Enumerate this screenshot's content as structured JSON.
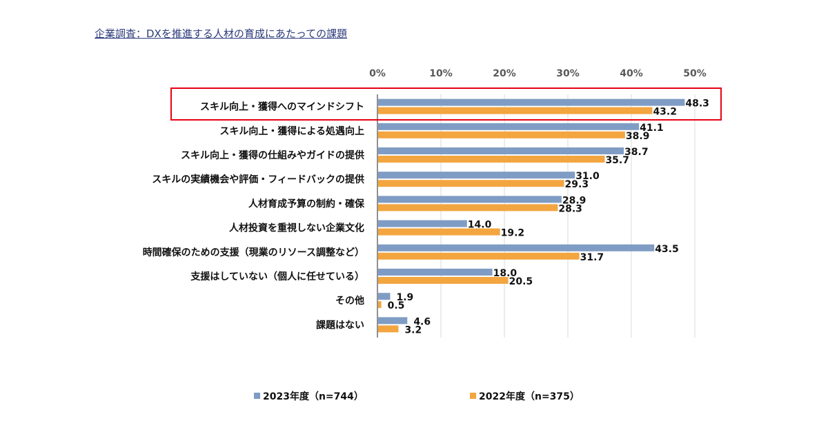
{
  "title": "企業調査：DXを推進する人材の育成にあたっての課題",
  "chart_data": {
    "type": "bar",
    "orientation": "horizontal",
    "title": "企業調査：DXを推進する人材の育成にあたっての課題",
    "xlim": [
      0,
      50
    ],
    "xticks": [
      "0%",
      "10%",
      "20%",
      "30%",
      "40%",
      "50%"
    ],
    "xtick_values": [
      0,
      10,
      20,
      30,
      40,
      50
    ],
    "grid": true,
    "legend_position": "bottom",
    "categories": [
      "スキル向上・獲得へのマインドシフト",
      "スキル向上・獲得による処遇向上",
      "スキル向上・獲得の仕組みやガイドの提供",
      "スキルの実績機会や評価・フィードバックの提供",
      "人材育成予算の制約・確保",
      "人材投資を重視しない企業文化",
      "時間確保のための支援（現業のリソース調整など）",
      "支援はしていない（個人に任せている）",
      "その他",
      "課題はない"
    ],
    "series": [
      {
        "name": "2023年度（n=744）",
        "color": "#7f9cc4",
        "values": [
          48.3,
          41.1,
          38.7,
          31.0,
          28.9,
          14.0,
          43.5,
          18.0,
          1.9,
          4.6
        ]
      },
      {
        "name": "2022年度（n=375）",
        "color": "#f3a540",
        "values": [
          43.2,
          38.9,
          35.7,
          29.3,
          28.3,
          19.2,
          31.7,
          20.5,
          0.5,
          3.2
        ]
      }
    ],
    "highlighted_category": "スキル向上・獲得へのマインドシフト",
    "highlight_color": "#e60012"
  }
}
